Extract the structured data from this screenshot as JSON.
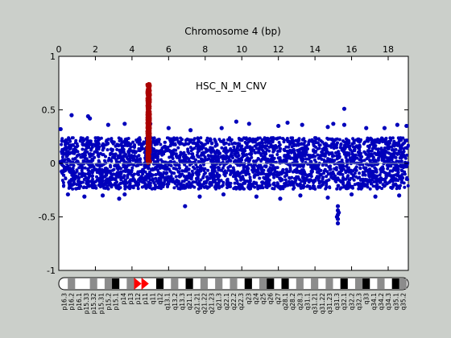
{
  "chart_data": {
    "type": "scatter",
    "title": "Chromosome 4 (bp)",
    "annotation": "HSC_N_M_CNV",
    "xlabel": "",
    "ylabel": "",
    "x_unit_note": "",
    "xlim": [
      0,
      19.1
    ],
    "ylim": [
      -1,
      1
    ],
    "x_ticks": [
      0,
      2,
      4,
      6,
      8,
      10,
      12,
      14,
      16,
      18
    ],
    "y_ticks": [
      -1,
      -0.5,
      0,
      0.5,
      1
    ],
    "y_tick_labels": [
      "-1",
      "-0.5",
      "0",
      "0.5",
      "1"
    ],
    "grid": false,
    "zero_line": true,
    "series": [
      {
        "color": "#0000bb",
        "band": {
          "x_range": [
            0.1,
            19.1
          ],
          "y_low": -0.24,
          "y_high": 0.24
        },
        "outliers": [
          [
            0.1,
            0.32
          ],
          [
            0.7,
            0.45
          ],
          [
            1.6,
            0.44
          ],
          [
            1.7,
            0.42
          ],
          [
            2.7,
            0.36
          ],
          [
            3.6,
            0.37
          ],
          [
            5.0,
            0.37
          ],
          [
            6.0,
            0.33
          ],
          [
            7.2,
            0.31
          ],
          [
            8.9,
            0.33
          ],
          [
            9.7,
            0.39
          ],
          [
            10.4,
            0.37
          ],
          [
            12.0,
            0.35
          ],
          [
            12.5,
            0.38
          ],
          [
            13.3,
            0.36
          ],
          [
            14.7,
            0.34
          ],
          [
            15.0,
            0.37
          ],
          [
            15.6,
            0.36
          ],
          [
            15.6,
            0.51
          ],
          [
            16.8,
            0.33
          ],
          [
            17.8,
            0.33
          ],
          [
            18.5,
            0.36
          ],
          [
            19.0,
            0.35
          ],
          [
            0.5,
            -0.29
          ],
          [
            1.4,
            -0.31
          ],
          [
            2.4,
            -0.3
          ],
          [
            3.3,
            -0.33
          ],
          [
            3.6,
            -0.29
          ],
          [
            6.9,
            -0.4
          ],
          [
            7.7,
            -0.31
          ],
          [
            9.0,
            -0.29
          ],
          [
            10.8,
            -0.31
          ],
          [
            12.1,
            -0.33
          ],
          [
            13.2,
            -0.3
          ],
          [
            14.7,
            -0.32
          ],
          [
            16.0,
            -0.29
          ],
          [
            17.3,
            -0.31
          ],
          [
            18.6,
            -0.3
          ],
          [
            15.25,
            -0.4
          ],
          [
            15.25,
            -0.44
          ],
          [
            15.25,
            -0.48
          ],
          [
            15.25,
            -0.52
          ],
          [
            15.25,
            -0.56
          ],
          [
            15.2,
            -0.5
          ],
          [
            15.3,
            -0.46
          ]
        ]
      },
      {
        "color": "#aa0000",
        "band": {
          "x_range": [
            4.82,
            5.0
          ],
          "y_low": 0.0,
          "y_high": 0.75
        },
        "outliers": []
      }
    ],
    "ideogram": {
      "bands": [
        "p16.3",
        "p16.2",
        "p16.1",
        "p15.33",
        "p15.32",
        "p15.31",
        "p15.2",
        "p15.1",
        "p14",
        "p13",
        "p12",
        "p11",
        "q11",
        "q12",
        "q13.1",
        "q13.2",
        "q13.3",
        "q21.1",
        "q21.21",
        "q21.22",
        "q21.23",
        "q21.3",
        "q22.1",
        "q22.2",
        "q22.3",
        "q23",
        "q24",
        "q25",
        "q26",
        "q27",
        "q28.1",
        "q28.2",
        "q28.3",
        "q31.1",
        "q31.21",
        "q31.22",
        "q31.23",
        "q31.3",
        "q32.1",
        "q32.2",
        "q32.3",
        "q33",
        "q34.1",
        "q34.2",
        "q34.3",
        "q35.1",
        "q35.2"
      ],
      "stains": [
        "w",
        "g",
        "w",
        "w",
        "g",
        "w",
        "g",
        "d",
        "w",
        "g",
        "c",
        "c",
        "w",
        "d",
        "w",
        "g",
        "w",
        "d",
        "w",
        "g",
        "w",
        "g",
        "w",
        "g",
        "w",
        "d",
        "w",
        "g",
        "d",
        "w",
        "d",
        "w",
        "g",
        "w",
        "g",
        "w",
        "g",
        "w",
        "d",
        "w",
        "g",
        "d",
        "w",
        "g",
        "w",
        "d",
        "g"
      ]
    }
  }
}
